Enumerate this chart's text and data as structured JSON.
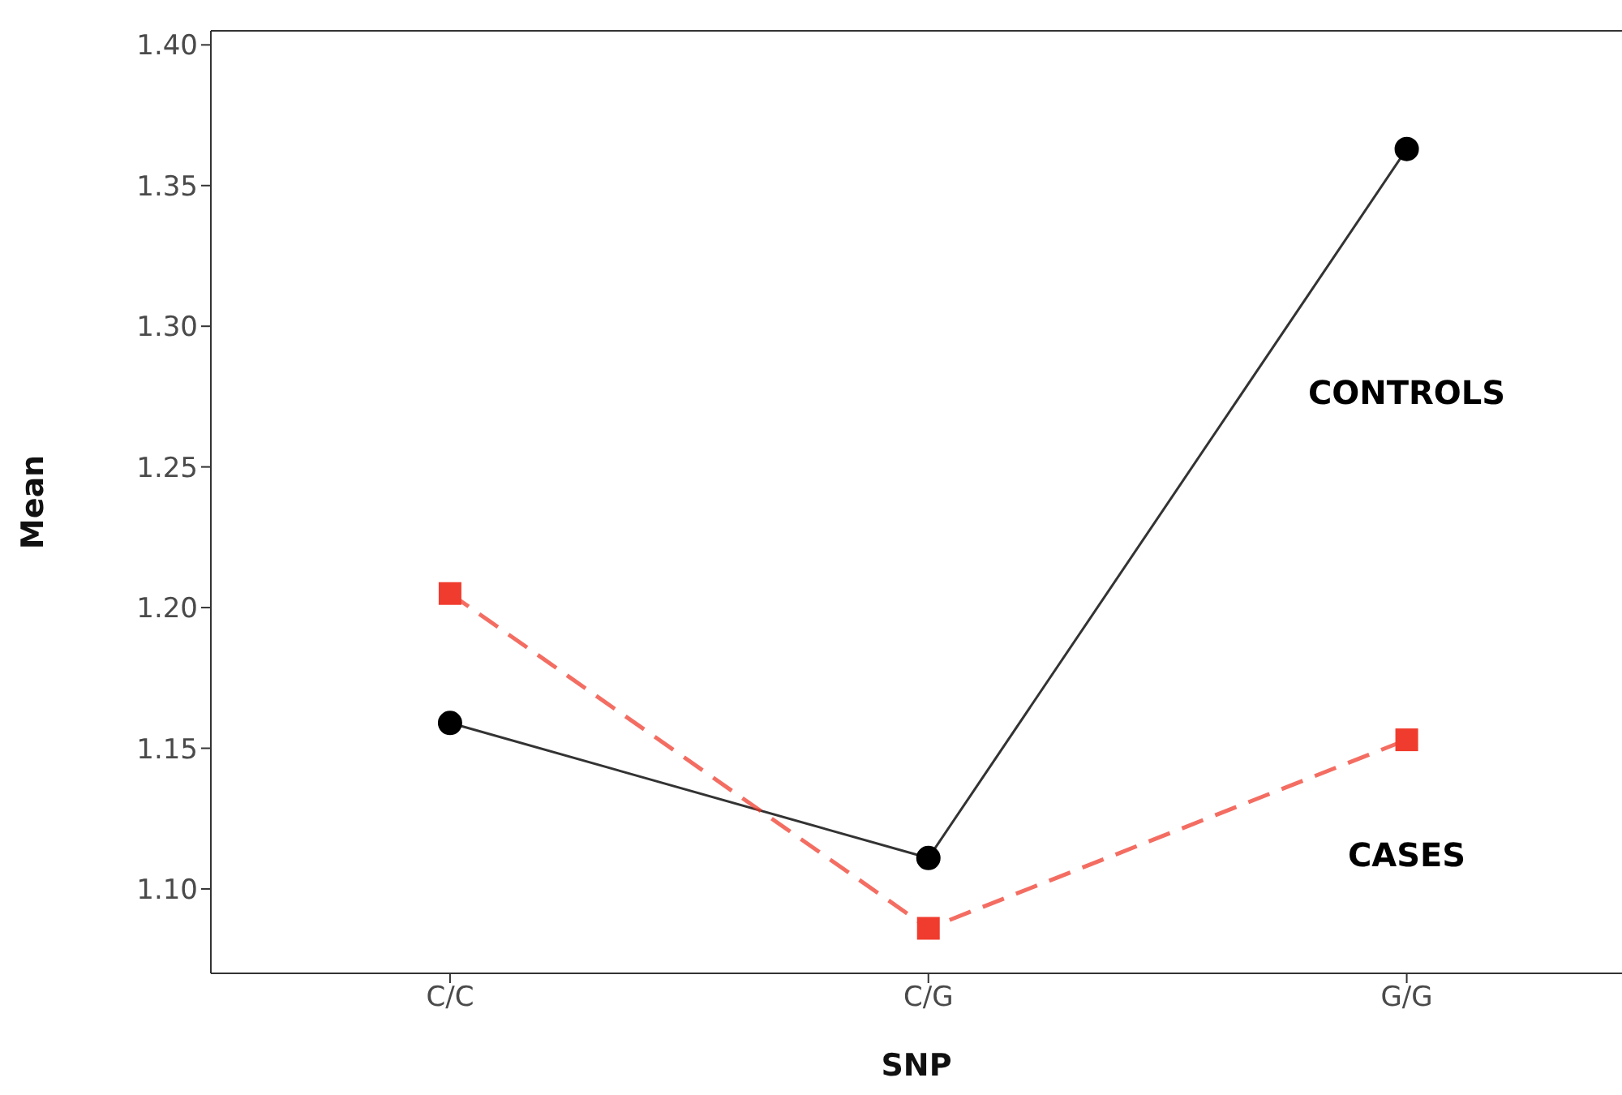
{
  "chart_data": {
    "type": "line",
    "xlabel": "SNP",
    "ylabel": "Mean",
    "categories": [
      "C/C",
      "C/G",
      "G/G"
    ],
    "ylim": [
      1.07,
      1.405
    ],
    "yticks": [
      {
        "value": 1.1,
        "label": "1.10"
      },
      {
        "value": 1.15,
        "label": "1.15"
      },
      {
        "value": 1.2,
        "label": "1.20"
      },
      {
        "value": 1.25,
        "label": "1.25"
      },
      {
        "value": 1.3,
        "label": "1.30"
      },
      {
        "value": 1.35,
        "label": "1.35"
      },
      {
        "value": 1.4,
        "label": "1.40"
      }
    ],
    "grid": false,
    "legend": false,
    "series": [
      {
        "name": "CONTROLS",
        "color": "#000000",
        "values": [
          1.159,
          1.111,
          1.363
        ],
        "marker": "circle",
        "line_style": "solid"
      },
      {
        "name": "CASES",
        "color": "#f03c2e",
        "values": [
          1.205,
          1.086,
          1.153
        ],
        "marker": "square",
        "line_style": "dashed"
      }
    ]
  }
}
